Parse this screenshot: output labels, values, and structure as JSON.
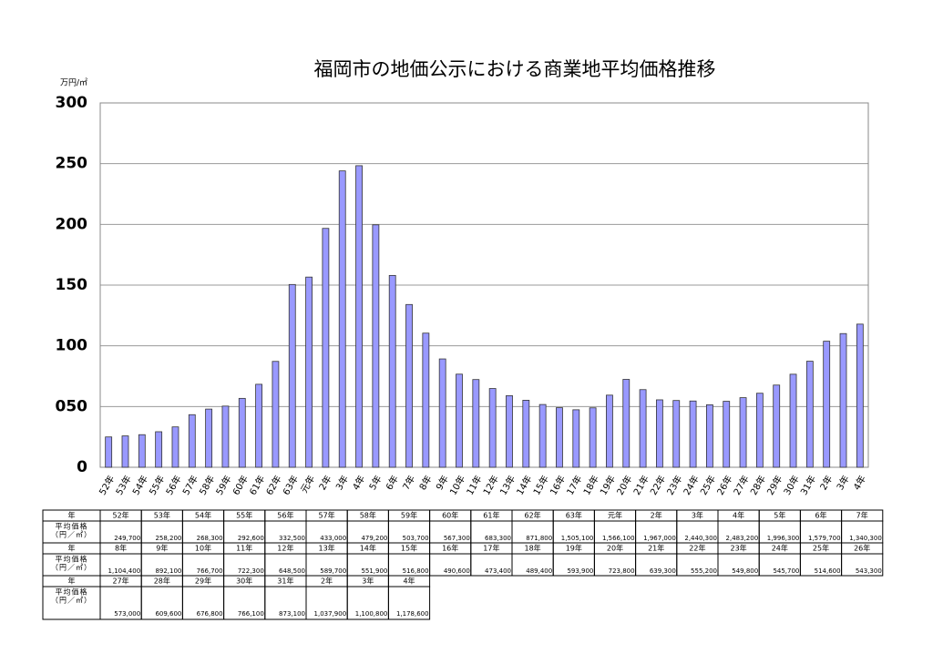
{
  "chart_data": {
    "type": "bar",
    "title": "福岡市の地価公示における商業地平均価格推移",
    "y_unit": "万円/㎡",
    "categories": [
      "52年",
      "53年",
      "54年",
      "55年",
      "56年",
      "57年",
      "58年",
      "59年",
      "60年",
      "61年",
      "62年",
      "63年",
      "元年",
      "2年",
      "3年",
      "4年",
      "5年",
      "6年",
      "7年",
      "8年",
      "9年",
      "10年",
      "11年",
      "12年",
      "13年",
      "14年",
      "15年",
      "16年",
      "17年",
      "18年",
      "19年",
      "20年",
      "21年",
      "22年",
      "23年",
      "24年",
      "25年",
      "26年",
      "27年",
      "28年",
      "29年",
      "30年",
      "31年",
      "2年",
      "3年",
      "4年"
    ],
    "values": [
      24.97,
      25.82,
      26.83,
      29.26,
      33.25,
      43.3,
      47.92,
      50.37,
      56.73,
      68.33,
      87.18,
      150.51,
      156.61,
      196.7,
      244.03,
      248.32,
      199.63,
      157.97,
      134.03,
      110.44,
      89.21,
      76.67,
      72.23,
      64.85,
      58.97,
      55.19,
      51.68,
      49.06,
      47.34,
      48.94,
      59.39,
      72.38,
      63.93,
      55.52,
      54.98,
      54.57,
      51.46,
      54.33,
      57.3,
      60.96,
      67.68,
      76.61,
      87.31,
      103.79,
      110.08,
      117.86
    ],
    "color": "#9999ff",
    "ylim": [
      0,
      300
    ],
    "yticks": [
      0,
      {
        "value": 50,
        "label": "050"
      },
      100,
      150,
      200,
      250,
      300
    ],
    "grid": true
  },
  "table": {
    "year_header": "年",
    "price_header": [
      "平均価格",
      "（円／㎡）"
    ],
    "blocks": [
      {
        "years": [
          "52年",
          "53年",
          "54年",
          "55年",
          "56年",
          "57年",
          "58年",
          "59年",
          "60年",
          "61年",
          "62年",
          "63年",
          "元年",
          "2年",
          "3年",
          "4年",
          "5年",
          "6年",
          "7年"
        ],
        "prices": [
          "249,700",
          "258,200",
          "268,300",
          "292,600",
          "332,500",
          "433,000",
          "479,200",
          "503,700",
          "567,300",
          "683,300",
          "871,800",
          "1,505,100",
          "1,566,100",
          "1,967,000",
          "2,440,300",
          "2,483,200",
          "1,996,300",
          "1,579,700",
          "1,340,300"
        ]
      },
      {
        "years": [
          "8年",
          "9年",
          "10年",
          "11年",
          "12年",
          "13年",
          "14年",
          "15年",
          "16年",
          "17年",
          "18年",
          "19年",
          "20年",
          "21年",
          "22年",
          "23年",
          "24年",
          "25年",
          "26年"
        ],
        "prices": [
          "1,104,400",
          "892,100",
          "766,700",
          "722,300",
          "648,500",
          "589,700",
          "551,900",
          "516,800",
          "490,600",
          "473,400",
          "489,400",
          "593,900",
          "723,800",
          "639,300",
          "555,200",
          "549,800",
          "545,700",
          "514,600",
          "543,300"
        ]
      },
      {
        "years": [
          "27年",
          "28年",
          "29年",
          "30年",
          "31年",
          "2年",
          "3年",
          "4年"
        ],
        "prices": [
          "573,000",
          "609,600",
          "676,800",
          "766,100",
          "873,100",
          "1,037,900",
          "1,100,800",
          "1,178,600"
        ]
      }
    ]
  }
}
